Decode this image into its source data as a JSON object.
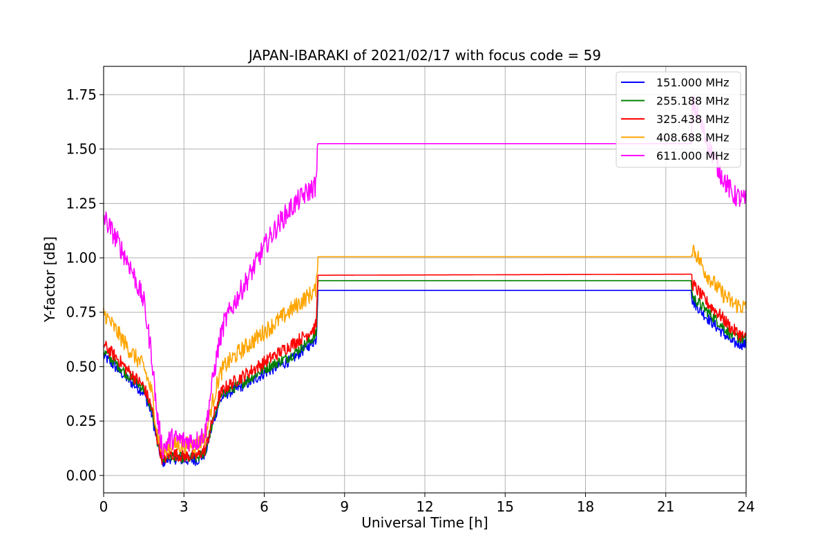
{
  "chart_data": {
    "type": "line",
    "title": "JAPAN-IBARAKI of 2021/02/17 with focus code = 59",
    "xlabel": "Universal Time [h]",
    "ylabel": "Y-factor [dB]",
    "xlim": [
      0,
      24
    ],
    "ylim": [
      -0.08,
      1.88
    ],
    "xticks": [
      0,
      3,
      6,
      9,
      12,
      15,
      18,
      21,
      24
    ],
    "xtick_labels": [
      "0",
      "3",
      "6",
      "9",
      "12",
      "15",
      "18",
      "21",
      "24"
    ],
    "yticks": [
      0.0,
      0.25,
      0.5,
      0.75,
      1.0,
      1.25,
      1.5,
      1.75
    ],
    "ytick_labels": [
      "0.00",
      "0.25",
      "0.50",
      "0.75",
      "1.00",
      "1.25",
      "1.50",
      "1.75"
    ],
    "grid": true,
    "legend_position": "top-right",
    "x": [
      0,
      0.5,
      1,
      1.5,
      1.8,
      2,
      2.2,
      2.5,
      3,
      3.5,
      3.8,
      4,
      4.3,
      4.5,
      5,
      5.5,
      6,
      6.5,
      7,
      7.5,
      7.9,
      7.95,
      8,
      21.95,
      22,
      22.5,
      23,
      23.5,
      24
    ],
    "series": [
      {
        "name": "151.000 MHz",
        "color": "#0000ff",
        "values": [
          0.55,
          0.49,
          0.43,
          0.38,
          0.28,
          0.15,
          0.06,
          0.08,
          0.07,
          0.07,
          0.1,
          0.2,
          0.33,
          0.37,
          0.4,
          0.43,
          0.47,
          0.5,
          0.53,
          0.58,
          0.62,
          0.63,
          0.85,
          0.85,
          0.8,
          0.73,
          0.67,
          0.61,
          0.6
        ]
      },
      {
        "name": "255.188 MHz",
        "color": "#008000",
        "values": [
          0.57,
          0.51,
          0.45,
          0.4,
          0.3,
          0.16,
          0.07,
          0.09,
          0.08,
          0.08,
          0.11,
          0.21,
          0.34,
          0.38,
          0.41,
          0.45,
          0.49,
          0.52,
          0.55,
          0.6,
          0.64,
          0.65,
          0.895,
          0.895,
          0.82,
          0.76,
          0.7,
          0.64,
          0.62
        ]
      },
      {
        "name": "325.438 MHz",
        "color": "#ff0000",
        "values": [
          0.6,
          0.54,
          0.47,
          0.41,
          0.31,
          0.17,
          0.07,
          0.1,
          0.09,
          0.09,
          0.12,
          0.22,
          0.36,
          0.4,
          0.44,
          0.48,
          0.52,
          0.56,
          0.6,
          0.64,
          0.68,
          0.7,
          0.92,
          0.925,
          0.88,
          0.8,
          0.74,
          0.67,
          0.63
        ]
      },
      {
        "name": "408.688 MHz",
        "color": "#ffa500",
        "values": [
          0.75,
          0.66,
          0.57,
          0.5,
          0.38,
          0.2,
          0.1,
          0.14,
          0.14,
          0.14,
          0.18,
          0.3,
          0.45,
          0.5,
          0.56,
          0.61,
          0.66,
          0.71,
          0.76,
          0.81,
          0.85,
          0.87,
          1.005,
          1.005,
          1.05,
          0.93,
          0.85,
          0.79,
          0.77
        ]
      },
      {
        "name": "611.000 MHz",
        "color": "#ff00ff",
        "values": [
          1.19,
          1.08,
          0.96,
          0.8,
          0.55,
          0.27,
          0.12,
          0.17,
          0.16,
          0.16,
          0.2,
          0.38,
          0.6,
          0.7,
          0.82,
          0.93,
          1.05,
          1.15,
          1.23,
          1.29,
          1.33,
          1.35,
          1.525,
          1.525,
          1.72,
          1.55,
          1.4,
          1.29,
          1.26
        ]
      }
    ]
  }
}
